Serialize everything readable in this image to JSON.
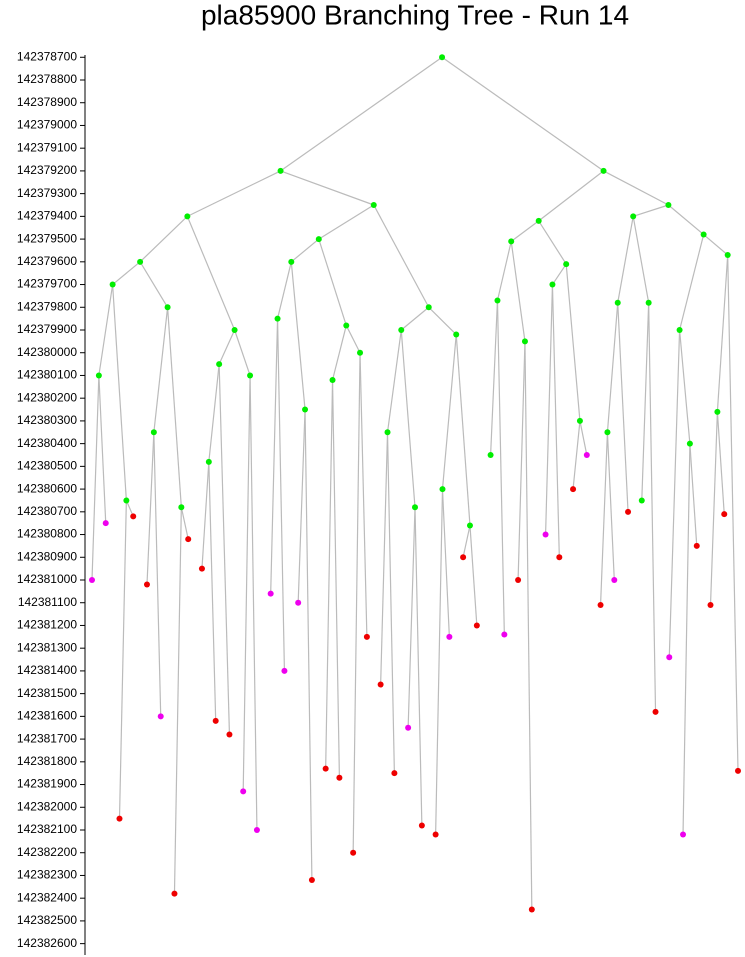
{
  "chart_data": {
    "type": "tree",
    "title": "pla85900 Branching Tree - Run 14",
    "ylim": [
      142378690,
      142382650
    ],
    "yticks": [
      142378700,
      142378800,
      142378900,
      142379000,
      142379100,
      142379200,
      142379300,
      142379400,
      142379500,
      142379600,
      142379700,
      142379800,
      142379900,
      142380000,
      142380100,
      142380200,
      142380300,
      142380400,
      142380500,
      142380600,
      142380700,
      142380800,
      142380900,
      142381000,
      142381100,
      142381200,
      142381300,
      142381400,
      142381500,
      142381600,
      142381700,
      142381800,
      142381900,
      142382000,
      142382100,
      142382200,
      142382300,
      142382400,
      142382500,
      142382600
    ],
    "edge_color": "#bbbbbb",
    "nodes": [
      {
        "parent": null,
        "value": 142378700,
        "color": "#00ee00"
      },
      {
        "parent": 0,
        "value": 142379200,
        "color": "#00ee00"
      },
      {
        "parent": 0,
        "value": 142379200,
        "color": "#00ee00"
      },
      {
        "parent": 1,
        "value": 142379400,
        "color": "#00ee00"
      },
      {
        "parent": 1,
        "value": 142379350,
        "color": "#00ee00"
      },
      {
        "parent": 2,
        "value": 142379420,
        "color": "#00ee00"
      },
      {
        "parent": 2,
        "value": 142379350,
        "color": "#00ee00"
      },
      {
        "parent": 3,
        "value": 142379600,
        "color": "#00ee00"
      },
      {
        "parent": 3,
        "value": 142379900,
        "color": "#00ee00"
      },
      {
        "parent": 4,
        "value": 142379500,
        "color": "#00ee00"
      },
      {
        "parent": 4,
        "value": 142379800,
        "color": "#00ee00"
      },
      {
        "parent": 5,
        "value": 142379510,
        "color": "#00ee00"
      },
      {
        "parent": 5,
        "value": 142379610,
        "color": "#00ee00"
      },
      {
        "parent": 6,
        "value": 142379400,
        "color": "#00ee00"
      },
      {
        "parent": 6,
        "value": 142379480,
        "color": "#00ee00"
      },
      {
        "parent": 7,
        "value": 142379700,
        "color": "#00ee00"
      },
      {
        "parent": 7,
        "value": 142379800,
        "color": "#00ee00"
      },
      {
        "parent": 15,
        "value": 142380100,
        "color": "#00ee00"
      },
      {
        "parent": 15,
        "value": 142380650,
        "color": "#00ee00"
      },
      {
        "parent": 17,
        "value": 142381000,
        "color": "#ee00ee"
      },
      {
        "parent": 17,
        "value": 142380750,
        "color": "#ee00ee"
      },
      {
        "parent": 18,
        "value": 142382050,
        "color": "#ee0000"
      },
      {
        "parent": 18,
        "value": 142380720,
        "color": "#ee0000"
      },
      {
        "parent": 16,
        "value": 142380350,
        "color": "#00ee00"
      },
      {
        "parent": 16,
        "value": 142380680,
        "color": "#00ee00"
      },
      {
        "parent": 23,
        "value": 142381020,
        "color": "#ee0000"
      },
      {
        "parent": 23,
        "value": 142381600,
        "color": "#ee00ee"
      },
      {
        "parent": 24,
        "value": 142382380,
        "color": "#ee0000"
      },
      {
        "parent": 24,
        "value": 142380820,
        "color": "#ee0000"
      },
      {
        "parent": 8,
        "value": 142380050,
        "color": "#00ee00"
      },
      {
        "parent": 8,
        "value": 142380100,
        "color": "#00ee00"
      },
      {
        "parent": 29,
        "value": 142380480,
        "color": "#00ee00"
      },
      {
        "parent": 29,
        "value": 142381680,
        "color": "#ee0000"
      },
      {
        "parent": 31,
        "value": 142380950,
        "color": "#ee0000"
      },
      {
        "parent": 31,
        "value": 142381620,
        "color": "#ee0000"
      },
      {
        "parent": 30,
        "value": 142381930,
        "color": "#ee00ee"
      },
      {
        "parent": 30,
        "value": 142382100,
        "color": "#ee00ee"
      },
      {
        "parent": 9,
        "value": 142379600,
        "color": "#00ee00"
      },
      {
        "parent": 9,
        "value": 142379880,
        "color": "#00ee00"
      },
      {
        "parent": 37,
        "value": 142379850,
        "color": "#00ee00"
      },
      {
        "parent": 37,
        "value": 142380250,
        "color": "#00ee00"
      },
      {
        "parent": 39,
        "value": 142381060,
        "color": "#ee00ee"
      },
      {
        "parent": 39,
        "value": 142381400,
        "color": "#ee00ee"
      },
      {
        "parent": 40,
        "value": 142381100,
        "color": "#ee00ee"
      },
      {
        "parent": 40,
        "value": 142382320,
        "color": "#ee0000"
      },
      {
        "parent": 38,
        "value": 142380120,
        "color": "#00ee00"
      },
      {
        "parent": 38,
        "value": 142380000,
        "color": "#00ee00"
      },
      {
        "parent": 45,
        "value": 142381830,
        "color": "#ee0000"
      },
      {
        "parent": 45,
        "value": 142381870,
        "color": "#ee0000"
      },
      {
        "parent": 46,
        "value": 142382200,
        "color": "#ee0000"
      },
      {
        "parent": 46,
        "value": 142381250,
        "color": "#ee0000"
      },
      {
        "parent": 10,
        "value": 142379900,
        "color": "#00ee00"
      },
      {
        "parent": 10,
        "value": 142379920,
        "color": "#00ee00"
      },
      {
        "parent": 51,
        "value": 142380350,
        "color": "#00ee00"
      },
      {
        "parent": 51,
        "value": 142380680,
        "color": "#00ee00"
      },
      {
        "parent": 53,
        "value": 142381460,
        "color": "#ee0000"
      },
      {
        "parent": 53,
        "value": 142381850,
        "color": "#ee0000"
      },
      {
        "parent": 54,
        "value": 142381650,
        "color": "#ee00ee"
      },
      {
        "parent": 54,
        "value": 142382080,
        "color": "#ee0000"
      },
      {
        "parent": 52,
        "value": 142380600,
        "color": "#00ee00"
      },
      {
        "parent": 52,
        "value": 142380760,
        "color": "#00ee00"
      },
      {
        "parent": 59,
        "value": 142382120,
        "color": "#ee0000"
      },
      {
        "parent": 59,
        "value": 142381250,
        "color": "#ee00ee"
      },
      {
        "parent": 60,
        "value": 142380900,
        "color": "#ee0000"
      },
      {
        "parent": 60,
        "value": 142381200,
        "color": "#ee0000"
      },
      {
        "parent": 11,
        "value": 142379770,
        "color": "#00ee00"
      },
      {
        "parent": 11,
        "value": 142379950,
        "color": "#00ee00"
      },
      {
        "parent": 65,
        "value": 142380450,
        "color": "#00ee00"
      },
      {
        "parent": 65,
        "value": 142381240,
        "color": "#ee00ee"
      },
      {
        "parent": 66,
        "value": 142381000,
        "color": "#ee0000"
      },
      {
        "parent": 66,
        "value": 142382450,
        "color": "#ee0000"
      },
      {
        "parent": 12,
        "value": 142379700,
        "color": "#00ee00"
      },
      {
        "parent": 12,
        "value": 142380300,
        "color": "#00ee00"
      },
      {
        "parent": 71,
        "value": 142380800,
        "color": "#ee00ee"
      },
      {
        "parent": 71,
        "value": 142380900,
        "color": "#ee0000"
      },
      {
        "parent": 72,
        "value": 142380600,
        "color": "#ee0000"
      },
      {
        "parent": 72,
        "value": 142380450,
        "color": "#ee00ee"
      },
      {
        "parent": 13,
        "value": 142379780,
        "color": "#00ee00"
      },
      {
        "parent": 13,
        "value": 142379780,
        "color": "#00ee00"
      },
      {
        "parent": 77,
        "value": 142380350,
        "color": "#00ee00"
      },
      {
        "parent": 77,
        "value": 142380700,
        "color": "#ee0000"
      },
      {
        "parent": 79,
        "value": 142381110,
        "color": "#ee0000"
      },
      {
        "parent": 79,
        "value": 142381000,
        "color": "#ee00ee"
      },
      {
        "parent": 78,
        "value": 142380650,
        "color": "#00ee00"
      },
      {
        "parent": 78,
        "value": 142381580,
        "color": "#ee0000"
      },
      {
        "parent": 14,
        "value": 142379900,
        "color": "#00ee00"
      },
      {
        "parent": 14,
        "value": 142379570,
        "color": "#00ee00"
      },
      {
        "parent": 85,
        "value": 142381340,
        "color": "#ee00ee"
      },
      {
        "parent": 85,
        "value": 142380400,
        "color": "#00ee00"
      },
      {
        "parent": 88,
        "value": 142382120,
        "color": "#ee00ee"
      },
      {
        "parent": 88,
        "value": 142380850,
        "color": "#ee0000"
      },
      {
        "parent": 86,
        "value": 142380260,
        "color": "#00ee00"
      },
      {
        "parent": 86,
        "value": 142381840,
        "color": "#ee0000"
      },
      {
        "parent": 91,
        "value": 142381110,
        "color": "#ee0000"
      },
      {
        "parent": 91,
        "value": 142380710,
        "color": "#ee0000"
      }
    ]
  }
}
